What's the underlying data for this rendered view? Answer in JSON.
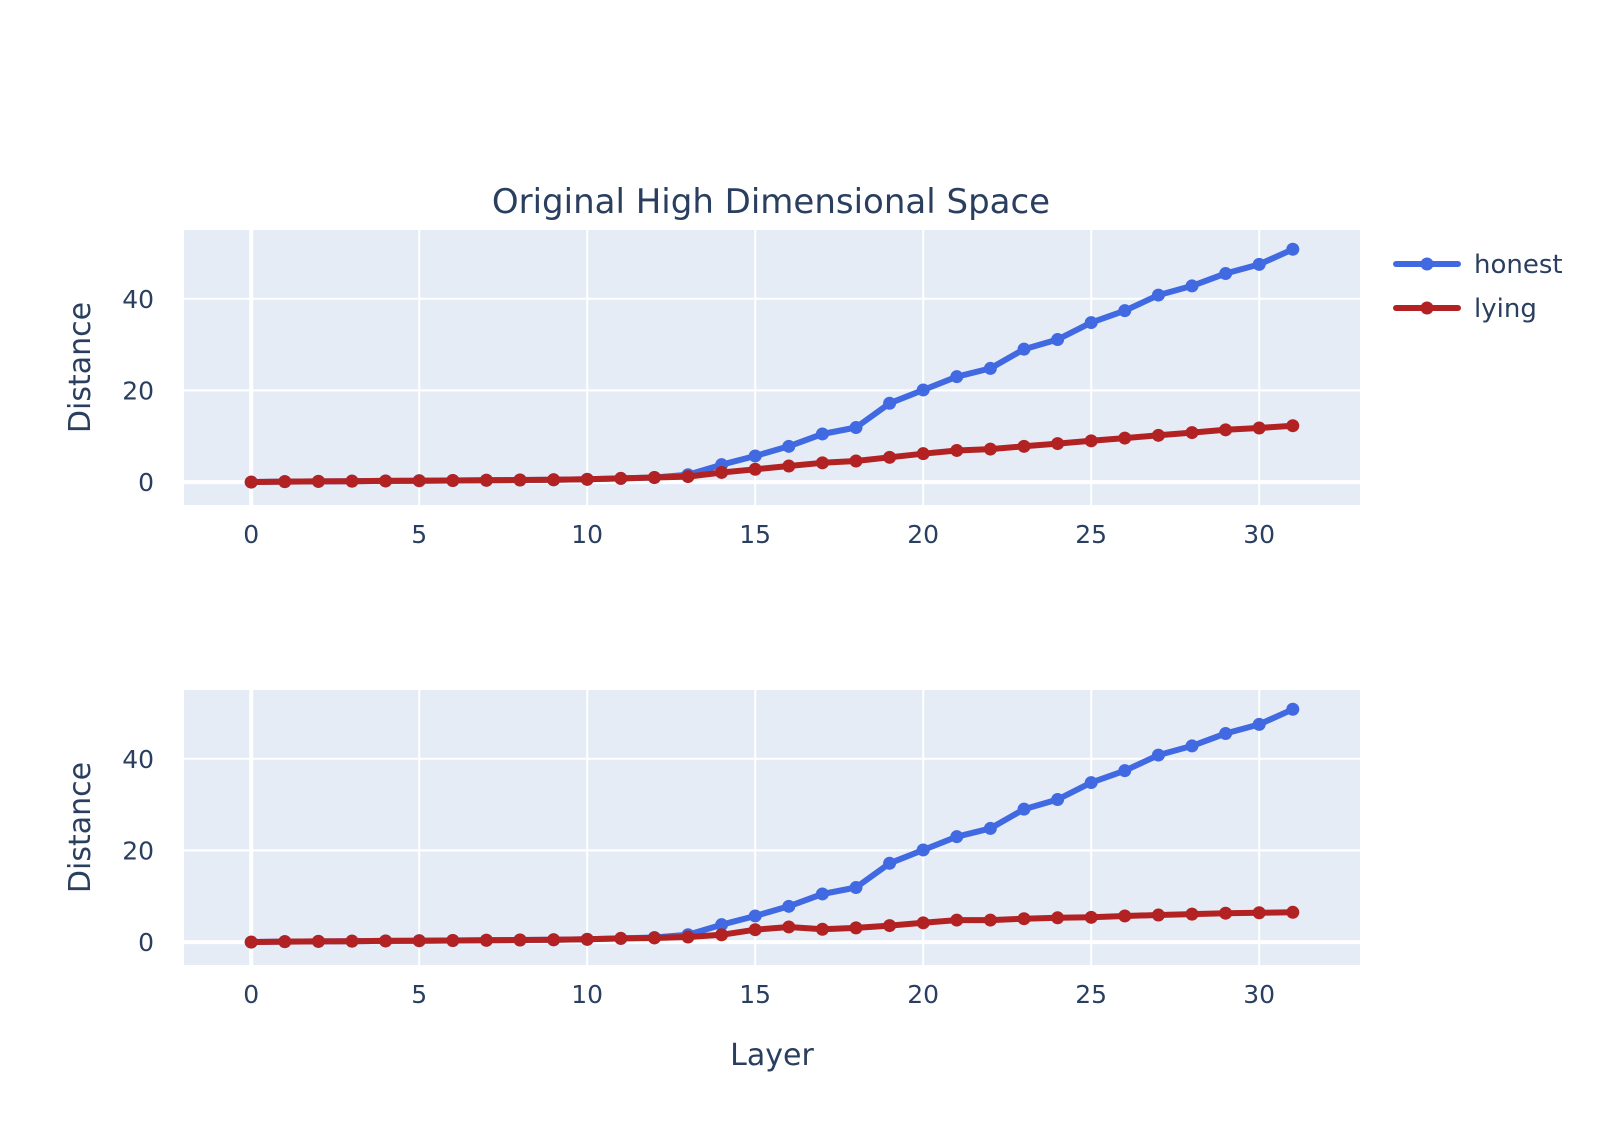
{
  "chart_data": {
    "title": "Original High Dimensional Space",
    "legend": {
      "placement": "top-right",
      "items": [
        {
          "name": "honest",
          "color": "#4169e1"
        },
        {
          "name": "lying",
          "color": "#b22222"
        }
      ]
    },
    "subplots": [
      {
        "type": "line",
        "xlabel": "",
        "ylabel": "Distance",
        "xlim": [
          -2,
          33
        ],
        "ylim": [
          -5,
          55
        ],
        "xticks": [
          0,
          5,
          10,
          15,
          20,
          25,
          30
        ],
        "yticks": [
          0,
          20,
          40
        ],
        "grid": true,
        "x": [
          0,
          1,
          2,
          3,
          4,
          5,
          6,
          7,
          8,
          9,
          10,
          11,
          12,
          13,
          14,
          15,
          16,
          17,
          18,
          19,
          20,
          21,
          22,
          23,
          24,
          25,
          26,
          27,
          28,
          29,
          30,
          31
        ],
        "series": [
          {
            "name": "honest",
            "color": "#4169e1",
            "values": [
              0,
              0.1,
              0.15,
              0.2,
              0.25,
              0.3,
              0.35,
              0.4,
              0.45,
              0.5,
              0.6,
              0.8,
              1.0,
              1.6,
              3.8,
              5.7,
              7.8,
              10.5,
              11.9,
              17.2,
              20.1,
              23.0,
              24.8,
              29.0,
              31.1,
              34.8,
              37.4,
              40.8,
              42.8,
              45.5,
              47.5,
              50.8
            ]
          },
          {
            "name": "lying",
            "color": "#b22222",
            "values": [
              0,
              0.1,
              0.15,
              0.2,
              0.25,
              0.3,
              0.35,
              0.4,
              0.45,
              0.5,
              0.6,
              0.8,
              1.0,
              1.2,
              2.1,
              2.8,
              3.5,
              4.2,
              4.6,
              5.4,
              6.2,
              6.9,
              7.2,
              7.8,
              8.4,
              9.0,
              9.6,
              10.2,
              10.8,
              11.4,
              11.8,
              12.3
            ]
          }
        ]
      },
      {
        "type": "line",
        "xlabel": "Layer",
        "ylabel": "Distance",
        "xlim": [
          -2,
          33
        ],
        "ylim": [
          -5,
          55
        ],
        "xticks": [
          0,
          5,
          10,
          15,
          20,
          25,
          30
        ],
        "yticks": [
          0,
          20,
          40
        ],
        "grid": true,
        "x": [
          0,
          1,
          2,
          3,
          4,
          5,
          6,
          7,
          8,
          9,
          10,
          11,
          12,
          13,
          14,
          15,
          16,
          17,
          18,
          19,
          20,
          21,
          22,
          23,
          24,
          25,
          26,
          27,
          28,
          29,
          30,
          31
        ],
        "series": [
          {
            "name": "honest",
            "color": "#4169e1",
            "values": [
              0,
              0.1,
              0.15,
              0.2,
              0.25,
              0.3,
              0.35,
              0.4,
              0.45,
              0.5,
              0.6,
              0.8,
              1.0,
              1.6,
              3.8,
              5.7,
              7.8,
              10.5,
              11.9,
              17.2,
              20.1,
              23.0,
              24.8,
              29.0,
              31.1,
              34.8,
              37.4,
              40.8,
              42.8,
              45.5,
              47.5,
              50.8
            ]
          },
          {
            "name": "lying",
            "color": "#b22222",
            "values": [
              0,
              0.1,
              0.15,
              0.2,
              0.25,
              0.3,
              0.35,
              0.4,
              0.45,
              0.5,
              0.6,
              0.8,
              0.9,
              1.1,
              1.6,
              2.7,
              3.3,
              2.8,
              3.1,
              3.6,
              4.2,
              4.8,
              4.8,
              5.1,
              5.3,
              5.4,
              5.7,
              5.9,
              6.1,
              6.3,
              6.4,
              6.5
            ]
          }
        ]
      }
    ]
  }
}
